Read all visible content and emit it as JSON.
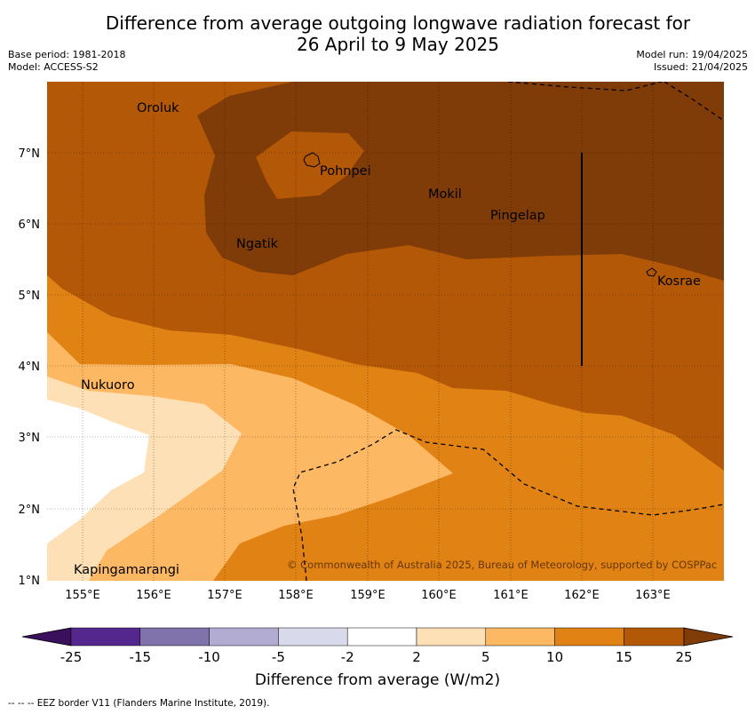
{
  "header": {
    "title_line1": "Difference from average outgoing longwave radiation forecast for",
    "title_line2": "26 April to 9 May 2025",
    "base_period": "Base period: 1981-2018",
    "model": "Model: ACCESS-S2",
    "model_run": "Model run: 19/04/2025",
    "issued": "Issued: 21/04/2025"
  },
  "map": {
    "lon_ticks": [
      "155°E",
      "156°E",
      "157°E",
      "158°E",
      "159°E",
      "160°E",
      "161°E",
      "162°E",
      "163°E"
    ],
    "lat_ticks": [
      "7°N",
      "6°N",
      "5°N",
      "4°N",
      "3°N",
      "2°N",
      "1°N"
    ],
    "places": [
      "Oroluk",
      "Pohnpei",
      "Mokil",
      "Pingelap",
      "Ngatik",
      "Kosrae",
      "Nukuoro",
      "Kapingamarangi"
    ],
    "copyright": "© Commonwealth of Australia 2025, Bureau of Meteorology, supported by COSPPac"
  },
  "colorbar": {
    "tick_labels": [
      "-25",
      "-15",
      "-10",
      "-5",
      "-2",
      "2",
      "5",
      "10",
      "15",
      "25"
    ],
    "colors": [
      "#3a0f5c",
      "#54278f",
      "#8073ac",
      "#b2abd2",
      "#d8daeb",
      "#ffffff",
      "#fee0b6",
      "#fdb863",
      "#e08214",
      "#b35806",
      "#7f3b08"
    ],
    "title": "Difference from average (W/m2)"
  },
  "footnote": "--  --  -- EEZ border V11 (Flanders Marine Institute, 2019)."
}
